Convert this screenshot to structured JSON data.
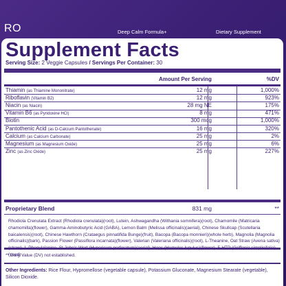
{
  "header": {
    "brand": "RO",
    "product": "Deep Calm Formula+",
    "category": "Dietary Supplement"
  },
  "panel": {
    "title": "Supplement Facts",
    "serving_label": "Serving Size:",
    "serving_value": "2 Veggie Capsules",
    "per_container_label": "Servings Per Container:",
    "per_container_value": "30",
    "col_amount": "Amount Per Serving",
    "col_dv": "%DV",
    "nutrients": [
      {
        "name": "Thiamin",
        "note": "(as Thiamine Mononitrate)",
        "amount": "12 mg",
        "dv": "1,000%"
      },
      {
        "name": "Riboflavin",
        "note": "(Vitamin B2)",
        "amount": "12 mg",
        "dv": "923%"
      },
      {
        "name": "Niacin",
        "note": "(as Niacin)",
        "amount": "28 mg NE",
        "dv": "175%"
      },
      {
        "name": "Vitamin B6",
        "note": "(as Pyridoxine HCl)",
        "amount": "8 mg",
        "dv": "471%"
      },
      {
        "name": "Biotin",
        "note": "",
        "amount": "300 mcg",
        "dv": "1,000%"
      },
      {
        "name": "Pantothenic Acid",
        "note": "(as D-Calcium Pantothenate)",
        "amount": "16 mg",
        "dv": "320%"
      },
      {
        "name": "Calcium",
        "note": "(as Calcium Carbonate)",
        "amount": "25 mg",
        "dv": "2%"
      },
      {
        "name": "Magnesium",
        "note": "(as Magnesium Oxide)",
        "amount": "25 mg",
        "dv": "6%"
      },
      {
        "name": "Zinc",
        "note": "(as Zinc Oxide)",
        "amount": "25 mg",
        "dv": "227%"
      }
    ],
    "blend_name": "Proprietary Blend",
    "blend_amount": "831 mg",
    "blend_dv": "**",
    "blend_ingredients": "Rhodiola Crenulata Extract (Rhodiola crenulata)(root), Lutein, Ashwagandha (Withania somnifera)(root), Chamomile (Matricaria chamomilla)(flower), Gamma-Aminobutyric Acid (GABA), Lemon Balm (Melissa officinalis)(aerial), Chinese Skullcap (Scutellaria baicalensis)(root), Chinese Hawthorn (Crataegus pinnatifida Bunge)(fruit), Bacopa (Bacopa monnieri)(whole herb), Magnolia (Magnolia officinalis)(bark), Passion Flower (Passiflora incarnata)(flower), Valerian (Valeriana officinalis)(root), L-Theanine, Oat Straw (Avena sativa)(straw), L-Phenylalanine, St John's Wort (Hypericum perforatum)(aerial), Hops (Humulus lupulus)(flower), 5-HTP (Griffonia simplicifolia)(seed)",
    "dv_note": "** Daily Value (DV) not established.",
    "other_label": "Other Ingredients:",
    "other_value": "Rice Flour, Hypromellose (vegetable capsule), Potassium Gluconate, Magnesium Stearate (vegetable), Silicon Dioxide."
  },
  "colors": {
    "background": "#3a1f73",
    "panel": "#ffffff",
    "ink": "#3b1f72"
  }
}
